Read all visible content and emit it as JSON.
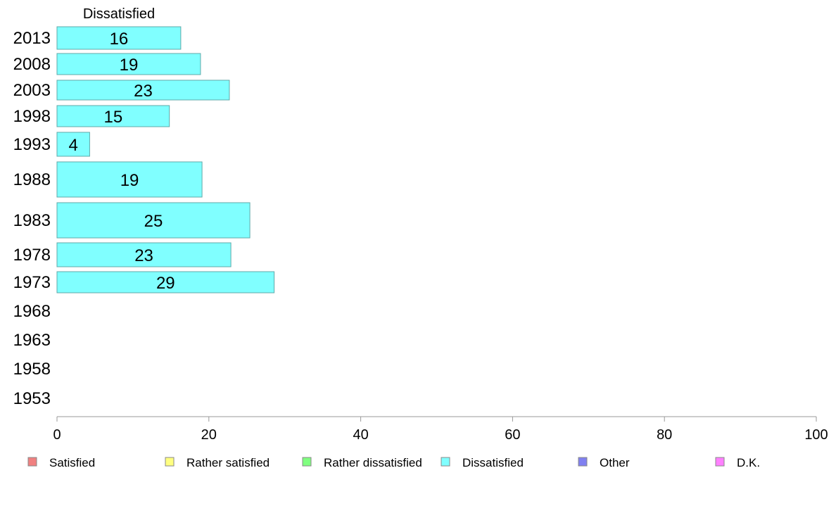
{
  "chart_data": {
    "type": "bar",
    "orientation": "horizontal",
    "title": "Dissatisfied",
    "categories": [
      "2013",
      "2008",
      "2003",
      "1998",
      "1993",
      "1988",
      "1983",
      "1978",
      "1973",
      "1968",
      "1963",
      "1958",
      "1953"
    ],
    "series": [
      {
        "name": "Dissatisfied",
        "color": "#80ffff",
        "values": [
          16.3,
          18.9,
          22.7,
          14.8,
          4.3,
          19.1,
          25.4,
          22.9,
          28.6,
          null,
          null,
          null,
          null
        ],
        "labels": [
          "16",
          "19",
          "23",
          "15",
          "4",
          "19",
          "25",
          "23",
          "29",
          "",
          "",
          "",
          ""
        ]
      }
    ],
    "xlim": [
      0,
      100
    ],
    "xticks": [
      "0",
      "20",
      "40",
      "60",
      "80",
      "100"
    ],
    "grid": false,
    "legend_position": "bottom",
    "legend": [
      {
        "label": "Satisfied",
        "color": "#f08080"
      },
      {
        "label": "Rather satisfied",
        "color": "#ffff80"
      },
      {
        "label": "Rather dissatisfied",
        "color": "#80ff80"
      },
      {
        "label": "Dissatisfied",
        "color": "#80ffff"
      },
      {
        "label": "Other",
        "color": "#8080f0"
      },
      {
        "label": "D.K.",
        "color": "#ff80ff"
      }
    ]
  }
}
